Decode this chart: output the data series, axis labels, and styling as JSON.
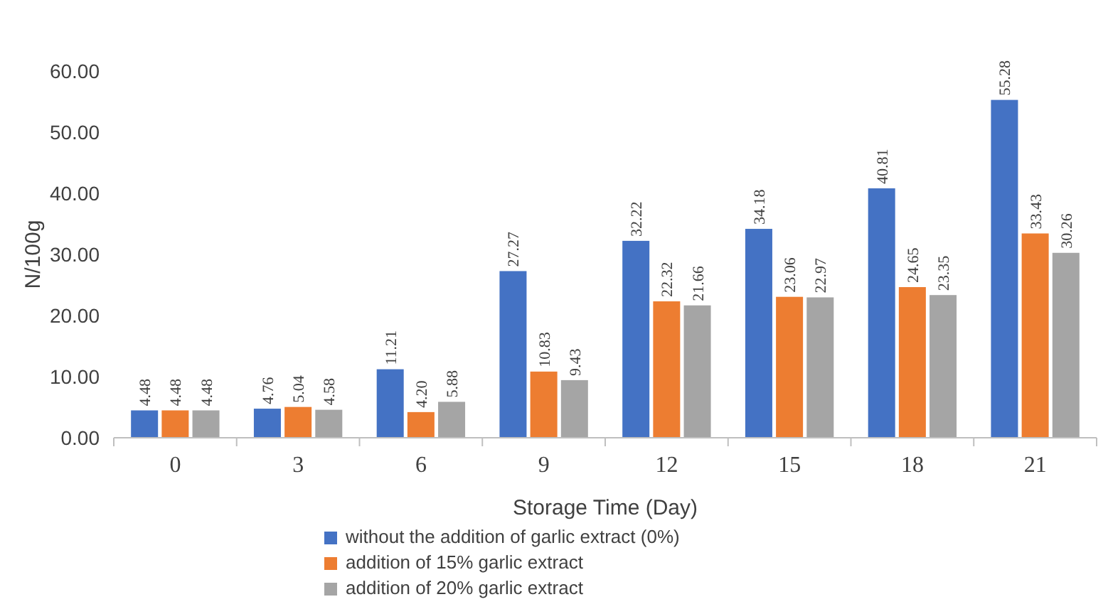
{
  "chart_data": {
    "type": "bar",
    "xlabel": "Storage Time (Day)",
    "ylabel": "N/100g",
    "categories": [
      "0",
      "3",
      "6",
      "9",
      "12",
      "15",
      "18",
      "21"
    ],
    "series": [
      {
        "name": "without the addition of garlic extract (0%)",
        "color": "#4472c4",
        "values": [
          4.48,
          4.76,
          11.21,
          27.27,
          32.22,
          34.18,
          40.81,
          55.28
        ],
        "value_labels": [
          "4.48",
          "4.76",
          "11.21",
          "27.27",
          "32.22",
          "34.18",
          "40.81",
          "55.28"
        ]
      },
      {
        "name": "addition of 15% garlic extract",
        "color": "#ed7d31",
        "values": [
          4.48,
          5.04,
          4.2,
          10.83,
          22.32,
          23.06,
          24.65,
          33.43
        ],
        "value_labels": [
          "4.48",
          "5.04",
          "4.20",
          "10.83",
          "22.32",
          "23.06",
          "24.65",
          "33.43"
        ]
      },
      {
        "name": "addition of 20% garlic extract",
        "color": "#a5a5a5",
        "values": [
          4.48,
          4.58,
          5.88,
          9.43,
          21.66,
          22.97,
          23.35,
          30.26
        ],
        "value_labels": [
          "4.48",
          "4.58",
          "5.88",
          "9.43",
          "21.66",
          "22.97",
          "23.35",
          "30.26"
        ]
      }
    ],
    "ylim": [
      0,
      60
    ],
    "yticks": [
      {
        "value": 0,
        "label": "0.00"
      },
      {
        "value": 10,
        "label": "10.00"
      },
      {
        "value": 20,
        "label": "20.00"
      },
      {
        "value": 30,
        "label": "30.00"
      },
      {
        "value": 40,
        "label": "40.00"
      },
      {
        "value": 50,
        "label": "50.00"
      },
      {
        "value": 60,
        "label": "60.00"
      }
    ],
    "grid": false,
    "legend": "bottom"
  }
}
